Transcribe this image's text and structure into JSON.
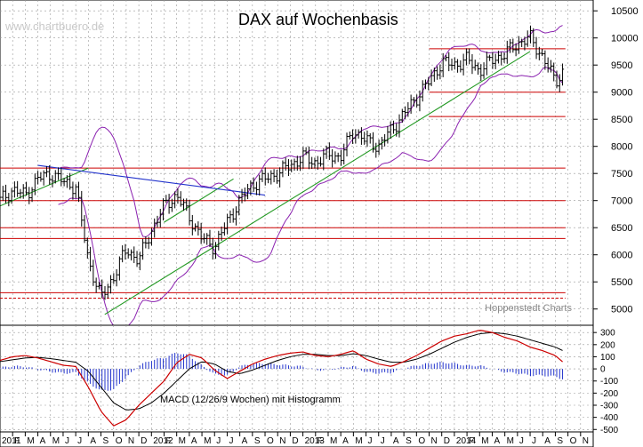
{
  "chart_data": [
    {
      "type": "line",
      "title": "DAX auf Wochenbasis",
      "watermark": "www.chartbuero.de",
      "credit": "Hoppenstedt Charts",
      "ylim": [
        4700,
        10700
      ],
      "ylabel_ticks": [
        "5000",
        "5500",
        "6000",
        "6500",
        "7000",
        "7500",
        "8000",
        "8500",
        "9000",
        "9500",
        "10000",
        "10500"
      ],
      "y_tick_values": [
        5000,
        5500,
        6000,
        6500,
        7000,
        7500,
        8000,
        8500,
        9000,
        9500,
        10000,
        10500
      ],
      "x_months": [
        "2011",
        "F",
        "M",
        "A",
        "M",
        "J",
        "J",
        "A",
        "S",
        "O",
        "N",
        "D",
        "2012",
        "F",
        "M",
        "A",
        "M",
        "J",
        "J",
        "A",
        "S",
        "O",
        "N",
        "D",
        "2013",
        "F",
        "M",
        "A",
        "M",
        "J",
        "J",
        "A",
        "S",
        "O",
        "N",
        "D",
        "2014",
        "F",
        "M",
        "A",
        "M",
        "J",
        "J",
        "A",
        "S",
        "O",
        "N"
      ],
      "grid": true,
      "legend": "none",
      "price_path": [
        [
          0,
          7000
        ],
        [
          1,
          7200
        ],
        [
          2,
          7100
        ],
        [
          3,
          7400
        ],
        [
          4,
          7500
        ],
        [
          5,
          7350
        ],
        [
          6,
          7250
        ],
        [
          7,
          5900
        ],
        [
          8,
          5200
        ],
        [
          9,
          5600
        ],
        [
          10,
          6100
        ],
        [
          11,
          5900
        ],
        [
          12,
          6450
        ],
        [
          13,
          6900
        ],
        [
          14,
          7100
        ],
        [
          15,
          6700
        ],
        [
          16,
          6300
        ],
        [
          17,
          6150
        ],
        [
          18,
          6600
        ],
        [
          19,
          7000
        ],
        [
          20,
          7300
        ],
        [
          21,
          7400
        ],
        [
          22,
          7500
        ],
        [
          23,
          7650
        ],
        [
          24,
          7800
        ],
        [
          25,
          7700
        ],
        [
          26,
          7850
        ],
        [
          27,
          7800
        ],
        [
          28,
          8300
        ],
        [
          29,
          8100
        ],
        [
          30,
          8000
        ],
        [
          31,
          8300
        ],
        [
          32,
          8600
        ],
        [
          33,
          8900
        ],
        [
          34,
          9200
        ],
        [
          35,
          9550
        ],
        [
          36,
          9500
        ],
        [
          37,
          9600
        ],
        [
          38,
          9400
        ],
        [
          39,
          9600
        ],
        [
          40,
          9700
        ],
        [
          41,
          9900
        ],
        [
          42,
          10000
        ],
        [
          43,
          9650
        ],
        [
          44,
          9200
        ],
        [
          45,
          9500
        ]
      ],
      "horizontal_levels": [
        9800,
        9000,
        8550,
        7600,
        7000,
        6500,
        6300,
        5300,
        5200
      ],
      "colors": {
        "price": "#000000",
        "bands": "#8b22b0",
        "trend_up": "#229922",
        "trend_down": "#2233cc",
        "levels": "#cc0000",
        "grid": "#999999"
      }
    },
    {
      "type": "line",
      "title": "MACD (12/26/9 Wochen) mit Histogramm",
      "ylim": [
        -520,
        360
      ],
      "ylabel_ticks": [
        "300",
        "200",
        "100",
        "0",
        "-100",
        "-200",
        "-300",
        "-400",
        "-500"
      ],
      "y_tick_values": [
        300,
        200,
        100,
        0,
        -100,
        -200,
        -300,
        -400,
        -500
      ],
      "series": [
        {
          "values": [
            70,
            100,
            110,
            90,
            60,
            30,
            20,
            -150,
            -350,
            -470,
            -420,
            -300,
            -200,
            -100,
            50,
            120,
            90,
            -10,
            -80,
            -20,
            40,
            80,
            110,
            130,
            140,
            110,
            100,
            120,
            150,
            80,
            40,
            20,
            60,
            110,
            170,
            230,
            270,
            290,
            320,
            300,
            260,
            230,
            180,
            150,
            110,
            20
          ]
        },
        {
          "values": [
            60,
            75,
            90,
            95,
            85,
            70,
            55,
            -20,
            -150,
            -280,
            -340,
            -330,
            -280,
            -200,
            -100,
            0,
            60,
            40,
            -20,
            -40,
            -10,
            30,
            70,
            100,
            120,
            120,
            110,
            110,
            125,
            110,
            80,
            55,
            55,
            80,
            120,
            170,
            220,
            260,
            290,
            300,
            290,
            270,
            240,
            210,
            180,
            130
          ]
        }
      ],
      "colors": {
        "macd": "#cc0000",
        "signal": "#000000",
        "histogram": "#2233cc"
      }
    }
  ]
}
